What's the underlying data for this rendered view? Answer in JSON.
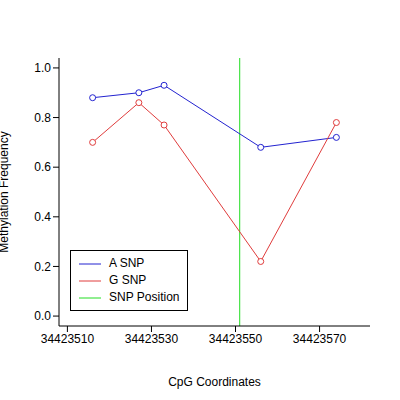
{
  "chart_data": {
    "type": "line",
    "xlabel": "CpG Coordinates",
    "ylabel": "Methylation Frequency",
    "x": [
      34423516,
      34423527,
      34423533,
      34423556,
      34423574
    ],
    "series": [
      {
        "name": "A SNP",
        "color": "#2323d0",
        "values": [
          0.88,
          0.9,
          0.93,
          0.68,
          0.72
        ],
        "marker": "circle"
      },
      {
        "name": "G SNP",
        "color": "#e03c3c",
        "values": [
          0.7,
          0.86,
          0.77,
          0.22,
          0.78
        ],
        "marker": "circle"
      }
    ],
    "reference_line": {
      "name": "SNP Position",
      "x": 34423551,
      "color": "#22dd22"
    },
    "xlim": [
      34423508,
      34423582
    ],
    "xticks": [
      34423510,
      34423530,
      34423550,
      34423570
    ],
    "ylim": [
      -0.04,
      1.04
    ],
    "yticks": [
      {
        "value": 0,
        "label": "0.0"
      },
      0.2,
      0.4,
      0.6,
      0.8,
      {
        "value": 1,
        "label": "1.0"
      }
    ],
    "legend": "lower left",
    "grid": false
  }
}
